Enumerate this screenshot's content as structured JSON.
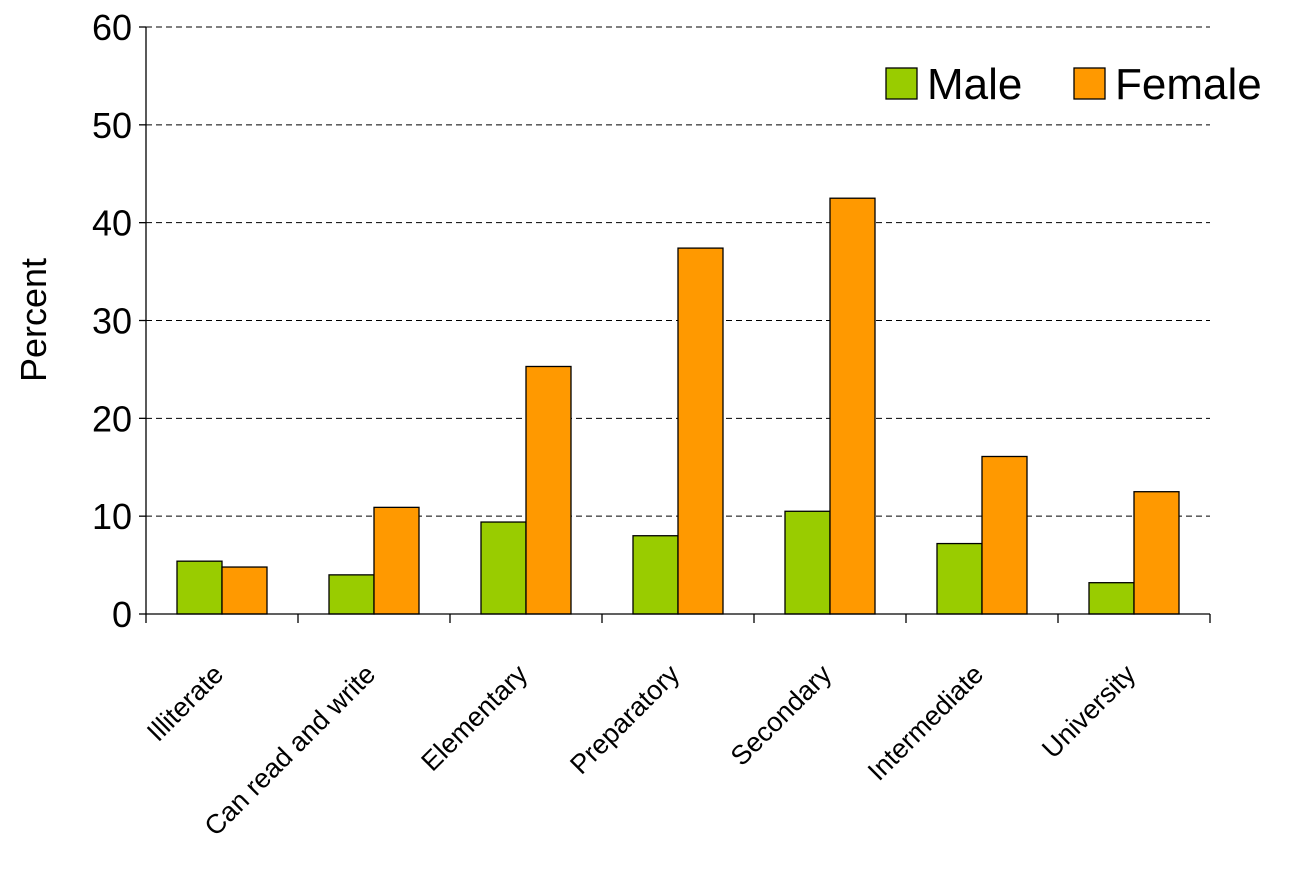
{
  "chart_data": {
    "type": "bar",
    "title": "",
    "xlabel": "",
    "ylabel": "Percent",
    "ylim": [
      0,
      60
    ],
    "yticks": [
      0,
      10,
      20,
      30,
      40,
      50,
      60
    ],
    "grid": true,
    "legend_position": "top-right",
    "categories": [
      "Illiterate",
      "Can read and write",
      "Elementary",
      "Preparatory",
      "Secondary",
      "Intermediate",
      "University"
    ],
    "series": [
      {
        "name": "Male",
        "color": "#99CC00",
        "values": [
          5.4,
          4.0,
          9.4,
          8.0,
          10.5,
          7.2,
          3.2
        ]
      },
      {
        "name": "Female",
        "color": "#FF9900",
        "values": [
          4.8,
          10.9,
          25.3,
          37.4,
          42.5,
          16.1,
          12.5
        ]
      }
    ]
  }
}
